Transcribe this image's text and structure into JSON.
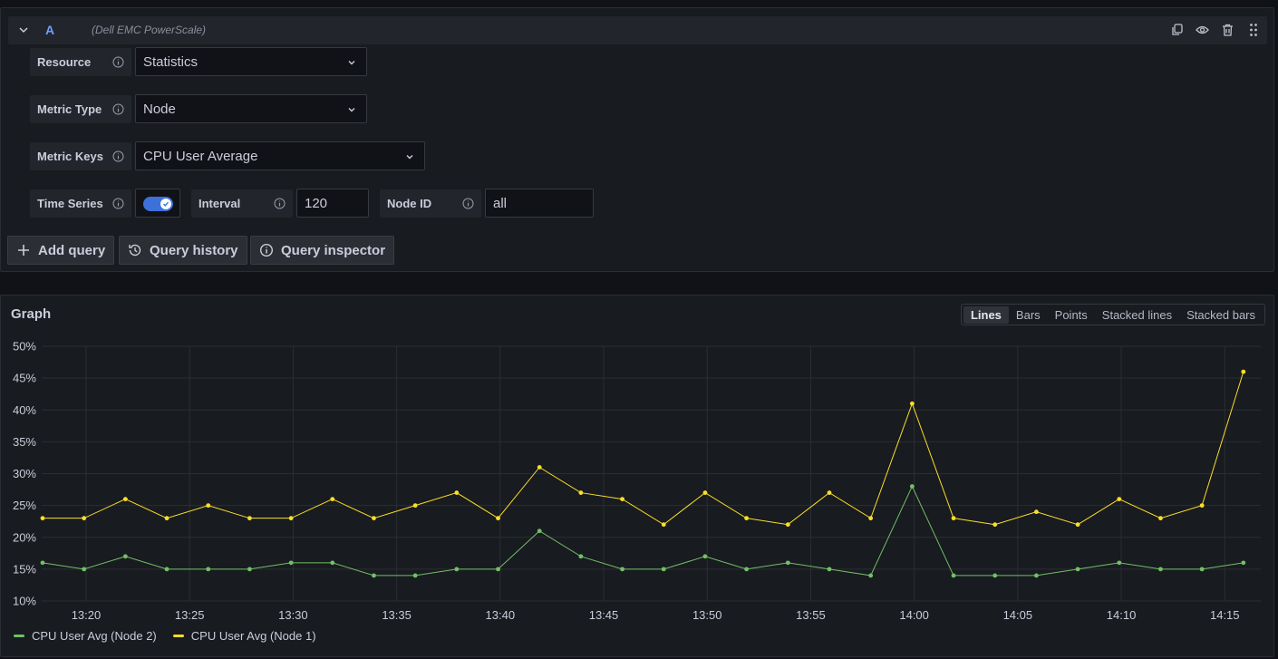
{
  "query": {
    "ref": "A",
    "datasource": "(Dell EMC PowerScale)",
    "resource_label": "Resource",
    "resource_value": "Statistics",
    "metric_type_label": "Metric Type",
    "metric_type_value": "Node",
    "metric_keys_label": "Metric Keys",
    "metric_keys_value": "CPU User Average",
    "time_series_label": "Time Series",
    "time_series_enabled": true,
    "interval_label": "Interval",
    "interval_value": "120",
    "node_id_label": "Node ID",
    "node_id_value": "all"
  },
  "buttons": {
    "add_query": "Add query",
    "query_history": "Query history",
    "query_inspector": "Query inspector"
  },
  "graph": {
    "title": "Graph",
    "modes": [
      "Lines",
      "Bars",
      "Points",
      "Stacked lines",
      "Stacked bars"
    ],
    "active_mode": "Lines"
  },
  "chart_data": {
    "type": "line",
    "x": [
      "13:18",
      "13:20",
      "13:22",
      "13:24",
      "13:26",
      "13:28",
      "13:30",
      "13:32",
      "13:34",
      "13:36",
      "13:38",
      "13:40",
      "13:42",
      "13:44",
      "13:46",
      "13:48",
      "13:50",
      "13:52",
      "13:54",
      "13:56",
      "13:58",
      "14:00",
      "14:02",
      "14:04",
      "14:06",
      "14:08",
      "14:10",
      "14:12",
      "14:14",
      "14:16"
    ],
    "x_ticks": [
      "13:20",
      "13:25",
      "13:30",
      "13:35",
      "13:40",
      "13:45",
      "13:50",
      "13:55",
      "14:00",
      "14:05",
      "14:10",
      "14:15"
    ],
    "y_ticks": [
      "10%",
      "15%",
      "20%",
      "25%",
      "30%",
      "35%",
      "40%",
      "45%",
      "50%"
    ],
    "ylim": [
      10,
      50
    ],
    "grid": true,
    "legend_position": "bottom-left",
    "series": [
      {
        "name": "CPU User Avg (Node 2)",
        "color": "#73bf69",
        "values": [
          16,
          15,
          17,
          15,
          15,
          15,
          16,
          16,
          14,
          14,
          15,
          15,
          21,
          17,
          15,
          15,
          17,
          15,
          16,
          15,
          14,
          28,
          14,
          14,
          14,
          15,
          16,
          15,
          15,
          16
        ]
      },
      {
        "name": "CPU User Avg (Node 1)",
        "color": "#fade2a",
        "values": [
          23,
          23,
          26,
          23,
          25,
          23,
          23,
          26,
          23,
          25,
          27,
          23,
          31,
          27,
          26,
          22,
          27,
          23,
          22,
          27,
          23,
          41,
          23,
          22,
          24,
          22,
          26,
          23,
          25,
          46
        ]
      }
    ]
  }
}
